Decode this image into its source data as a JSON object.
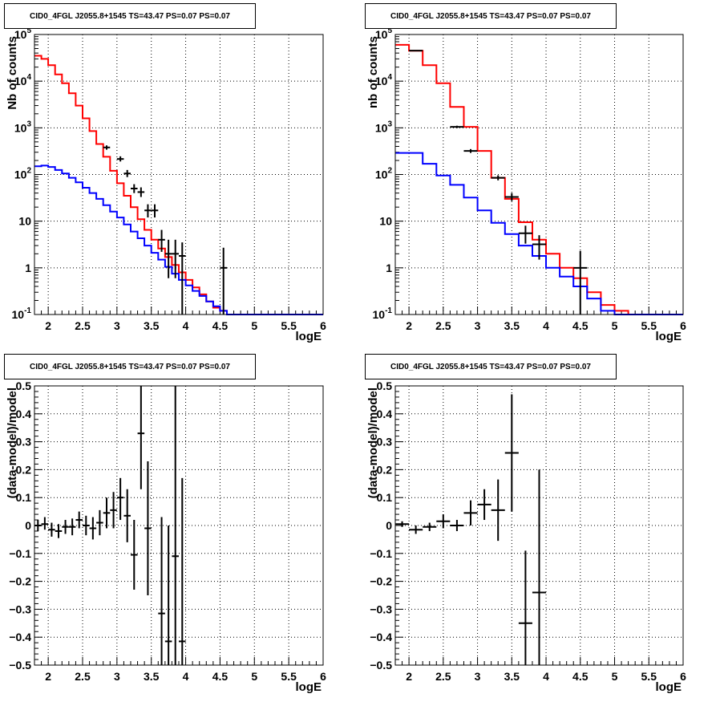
{
  "colors": {
    "frame": "#000000",
    "grid": "#000000",
    "data": "#000000",
    "total_model": "#ff0000",
    "component_model": "#0000ff"
  },
  "chart_data": [
    {
      "type": "line",
      "title": "CID0_4FGL J2055.8+1545 TS=43.47 PS=0.07 PS=0.07",
      "xlabel": "logE",
      "ylabel": "Nb of counts",
      "xlim": [
        1.8,
        6.0
      ],
      "ylim": [
        0.1,
        100000
      ],
      "yscale": "log",
      "grid": true,
      "xticks": [
        2,
        2.5,
        3,
        3.5,
        4,
        4.5,
        5,
        5.5,
        6
      ],
      "xtick_labels": [
        "2",
        "2.5",
        "3",
        "3.5",
        "4",
        "4.5",
        "5",
        "5.5",
        "6"
      ],
      "yticks": [
        0.1,
        1,
        10,
        100,
        1000,
        10000,
        100000
      ],
      "ytick_labels": [
        "10^-1",
        "1",
        "10",
        "10^2",
        "10^3",
        "10^4",
        "10^5"
      ],
      "bin_edges": [
        1.8,
        1.9,
        2.0,
        2.1,
        2.2,
        2.3,
        2.4,
        2.5,
        2.6,
        2.7,
        2.8,
        2.9,
        3.0,
        3.1,
        3.2,
        3.3,
        3.4,
        3.5,
        3.6,
        3.7,
        3.8,
        3.9,
        4.0,
        4.1,
        4.2,
        4.3,
        4.4,
        4.5,
        4.6,
        4.7,
        4.8,
        4.9,
        5.0,
        5.1,
        5.2,
        5.3,
        5.4,
        5.5,
        5.6,
        5.7,
        5.8,
        5.9,
        6.0
      ],
      "series": [
        {
          "role": "total_model",
          "values": [
            35000,
            30000,
            22000,
            14000,
            9000,
            5500,
            3000,
            1600,
            850,
            450,
            240,
            120,
            65,
            35,
            20,
            11,
            6.5,
            4.0,
            2.6,
            1.7,
            1.15,
            0.8,
            0.55,
            0.38,
            0.27,
            0.19,
            0.14,
            0.12,
            0.1,
            0.1,
            0.1,
            0.1,
            0.1,
            0.1,
            0.1,
            0.1,
            0.1,
            0.1,
            0.1,
            0.1,
            0.1,
            0.1
          ]
        },
        {
          "role": "component_model",
          "values": [
            150,
            155,
            145,
            125,
            105,
            85,
            68,
            52,
            40,
            30,
            22,
            16,
            12,
            8.5,
            6.0,
            4.3,
            3.0,
            2.1,
            1.5,
            1.05,
            0.75,
            0.55,
            0.42,
            0.32,
            0.25,
            0.19,
            0.15,
            0.12,
            0.1,
            0.1,
            0.1,
            0.1,
            0.1,
            0.1,
            0.1,
            0.1,
            0.1,
            0.1,
            0.1,
            0.1,
            0.1,
            0.1
          ]
        }
      ],
      "points": [
        {
          "x": 2.85,
          "y": 380,
          "xerr": 0.05,
          "ylo": 340,
          "yhi": 420
        },
        {
          "x": 3.05,
          "y": 215,
          "xerr": 0.05,
          "ylo": 190,
          "yhi": 245
        },
        {
          "x": 3.15,
          "y": 105,
          "xerr": 0.05,
          "ylo": 88,
          "yhi": 125
        },
        {
          "x": 3.25,
          "y": 50,
          "xerr": 0.05,
          "ylo": 40,
          "yhi": 62
        },
        {
          "x": 3.35,
          "y": 42,
          "xerr": 0.05,
          "ylo": 33,
          "yhi": 53
        },
        {
          "x": 3.45,
          "y": 17,
          "xerr": 0.05,
          "ylo": 12,
          "yhi": 23
        },
        {
          "x": 3.55,
          "y": 17,
          "xerr": 0.05,
          "ylo": 12,
          "yhi": 23
        },
        {
          "x": 3.65,
          "y": 4.0,
          "xerr": 0.05,
          "ylo": 2.2,
          "yhi": 6.5
        },
        {
          "x": 3.75,
          "y": 2.0,
          "xerr": 0.05,
          "ylo": 0.6,
          "yhi": 4.0
        },
        {
          "x": 3.85,
          "y": 2.0,
          "xerr": 0.05,
          "ylo": 0.6,
          "yhi": 4.0
        },
        {
          "x": 3.95,
          "y": 1.8,
          "xerr": 0.05,
          "ylo": 0.1,
          "yhi": 3.5
        },
        {
          "x": 4.55,
          "y": 1.0,
          "xerr": 0.05,
          "ylo": 0.1,
          "yhi": 2.7
        }
      ]
    },
    {
      "type": "line",
      "title": "CID0_4FGL J2055.8+1545 TS=43.47 PS=0.07 PS=0.07",
      "xlabel": "logE",
      "ylabel": "nb of counts",
      "xlim": [
        1.8,
        6.0
      ],
      "ylim": [
        0.1,
        100000
      ],
      "yscale": "log",
      "grid": true,
      "xticks": [
        2,
        2.5,
        3,
        3.5,
        4,
        4.5,
        5,
        5.5,
        6
      ],
      "xtick_labels": [
        "2",
        "2.5",
        "3",
        "3.5",
        "4",
        "4.5",
        "5",
        "5.5",
        "6"
      ],
      "yticks": [
        0.1,
        1,
        10,
        100,
        1000,
        10000,
        100000
      ],
      "ytick_labels": [
        "10^-1",
        "1",
        "10",
        "10^2",
        "10^3",
        "10^4",
        "10^5"
      ],
      "bin_edges": [
        1.8,
        2.0,
        2.2,
        2.4,
        2.6,
        2.8,
        3.0,
        3.2,
        3.4,
        3.6,
        3.8,
        4.0,
        4.2,
        4.4,
        4.6,
        4.8,
        5.0,
        5.2,
        5.4,
        5.6,
        5.8,
        6.0
      ],
      "series": [
        {
          "role": "total_model",
          "values": [
            60000,
            45000,
            22000,
            9000,
            2800,
            1050,
            320,
            85,
            30,
            9.5,
            4.0,
            2.0,
            1.0,
            0.6,
            0.3,
            0.16,
            0.12,
            0.1,
            0.1,
            0.1,
            0.1
          ]
        },
        {
          "role": "component_model",
          "values": [
            290,
            290,
            170,
            95,
            60,
            32,
            17,
            9.2,
            5.3,
            3.0,
            1.8,
            1.0,
            0.65,
            0.4,
            0.22,
            0.12,
            0.1,
            0.1,
            0.1,
            0.1,
            0.1
          ]
        }
      ],
      "points": [
        {
          "x": 2.1,
          "y": 45000,
          "xerr": 0.1,
          "ylo": 44000,
          "yhi": 46000
        },
        {
          "x": 2.7,
          "y": 1050,
          "xerr": 0.1,
          "ylo": 990,
          "yhi": 1110
        },
        {
          "x": 2.9,
          "y": 320,
          "xerr": 0.1,
          "ylo": 290,
          "yhi": 350
        },
        {
          "x": 3.3,
          "y": 85,
          "xerr": 0.1,
          "ylo": 75,
          "yhi": 96
        },
        {
          "x": 3.5,
          "y": 33,
          "xerr": 0.1,
          "ylo": 27,
          "yhi": 40
        },
        {
          "x": 3.7,
          "y": 5.5,
          "xerr": 0.1,
          "ylo": 3.3,
          "yhi": 8.0
        },
        {
          "x": 3.9,
          "y": 3.2,
          "xerr": 0.1,
          "ylo": 1.5,
          "yhi": 5.0
        },
        {
          "x": 4.5,
          "y": 1.0,
          "xerr": 0.1,
          "ylo": 0.1,
          "yhi": 2.3
        }
      ]
    },
    {
      "type": "scatter",
      "title": "CID0_4FGL J2055.8+1545 TS=43.47 PS=0.07 PS=0.07",
      "xlabel": "logE",
      "ylabel": "(data-model)/model",
      "xlim": [
        1.8,
        6.0
      ],
      "ylim": [
        -0.5,
        0.5
      ],
      "grid": true,
      "xticks": [
        2,
        2.5,
        3,
        3.5,
        4,
        4.5,
        5,
        5.5,
        6
      ],
      "xtick_labels": [
        "2",
        "2.5",
        "3",
        "3.5",
        "4",
        "4.5",
        "5",
        "5.5",
        "6"
      ],
      "yticks": [
        -0.5,
        -0.4,
        -0.3,
        -0.2,
        -0.1,
        0,
        0.1,
        0.2,
        0.3,
        0.4,
        0.5
      ],
      "ytick_labels": [
        "−0.5",
        "−0.4",
        "−0.3",
        "−0.2",
        "−0.1",
        "0",
        "0.1",
        "0.2",
        "0.3",
        "0.4",
        "0.5"
      ],
      "points": [
        {
          "x": 1.85,
          "y": 0.0,
          "xerr": 0.05,
          "ylo": -0.02,
          "yhi": 0.02
        },
        {
          "x": 1.95,
          "y": 0.005,
          "xerr": 0.05,
          "ylo": -0.015,
          "yhi": 0.03
        },
        {
          "x": 2.05,
          "y": -0.015,
          "xerr": 0.05,
          "ylo": -0.04,
          "yhi": 0.01
        },
        {
          "x": 2.15,
          "y": -0.02,
          "xerr": 0.05,
          "ylo": -0.045,
          "yhi": 0.005
        },
        {
          "x": 2.25,
          "y": -0.005,
          "xerr": 0.05,
          "ylo": -0.03,
          "yhi": 0.02
        },
        {
          "x": 2.35,
          "y": -0.005,
          "xerr": 0.05,
          "ylo": -0.035,
          "yhi": 0.025
        },
        {
          "x": 2.45,
          "y": 0.02,
          "xerr": 0.05,
          "ylo": -0.01,
          "yhi": 0.05
        },
        {
          "x": 2.55,
          "y": 0.0,
          "xerr": 0.05,
          "ylo": -0.035,
          "yhi": 0.035
        },
        {
          "x": 2.65,
          "y": -0.01,
          "xerr": 0.05,
          "ylo": -0.05,
          "yhi": 0.03
        },
        {
          "x": 2.75,
          "y": 0.01,
          "xerr": 0.05,
          "ylo": -0.035,
          "yhi": 0.055
        },
        {
          "x": 2.85,
          "y": 0.045,
          "xerr": 0.05,
          "ylo": -0.01,
          "yhi": 0.1
        },
        {
          "x": 2.95,
          "y": 0.055,
          "xerr": 0.05,
          "ylo": -0.01,
          "yhi": 0.12
        },
        {
          "x": 3.05,
          "y": 0.1,
          "xerr": 0.05,
          "ylo": 0.02,
          "yhi": 0.17
        },
        {
          "x": 3.15,
          "y": 0.035,
          "xerr": 0.05,
          "ylo": -0.06,
          "yhi": 0.13
        },
        {
          "x": 3.25,
          "y": -0.105,
          "xerr": 0.05,
          "ylo": -0.23,
          "yhi": 0.02
        },
        {
          "x": 3.35,
          "y": 0.33,
          "xerr": 0.05,
          "ylo": 0.13,
          "yhi": 0.5
        },
        {
          "x": 3.45,
          "y": -0.01,
          "xerr": 0.05,
          "ylo": -0.25,
          "yhi": 0.23
        },
        {
          "x": 3.65,
          "y": -0.315,
          "xerr": 0.05,
          "ylo": -0.5,
          "yhi": 0.03
        },
        {
          "x": 3.75,
          "y": -0.415,
          "xerr": 0.05,
          "ylo": -0.5,
          "yhi": 0.0
        },
        {
          "x": 3.85,
          "y": -0.11,
          "xerr": 0.05,
          "ylo": -0.5,
          "yhi": 0.5
        },
        {
          "x": 3.95,
          "y": -0.415,
          "xerr": 0.05,
          "ylo": -0.5,
          "yhi": 0.17
        }
      ]
    },
    {
      "type": "scatter",
      "title": "CID0_4FGL J2055.8+1545 TS=43.47 PS=0.07 PS=0.07",
      "xlabel": "logE",
      "ylabel": "(data-model)/model",
      "xlim": [
        1.8,
        6.0
      ],
      "ylim": [
        -0.5,
        0.5
      ],
      "grid": true,
      "xticks": [
        2,
        2.5,
        3,
        3.5,
        4,
        4.5,
        5,
        5.5,
        6
      ],
      "xtick_labels": [
        "2",
        "2.5",
        "3",
        "3.5",
        "4",
        "4.5",
        "5",
        "5.5",
        "6"
      ],
      "yticks": [
        -0.5,
        -0.4,
        -0.3,
        -0.2,
        -0.1,
        0,
        0.1,
        0.2,
        0.3,
        0.4,
        0.5
      ],
      "ytick_labels": [
        "−0.5",
        "−0.4",
        "−0.3",
        "−0.2",
        "−0.1",
        "0",
        "0.1",
        "0.2",
        "0.3",
        "0.4",
        "0.5"
      ],
      "points": [
        {
          "x": 1.9,
          "y": 0.005,
          "xerr": 0.1,
          "ylo": -0.005,
          "yhi": 0.015
        },
        {
          "x": 2.1,
          "y": -0.015,
          "xerr": 0.1,
          "ylo": -0.03,
          "yhi": 0.0
        },
        {
          "x": 2.3,
          "y": -0.005,
          "xerr": 0.1,
          "ylo": -0.02,
          "yhi": 0.01
        },
        {
          "x": 2.5,
          "y": 0.015,
          "xerr": 0.1,
          "ylo": -0.01,
          "yhi": 0.04
        },
        {
          "x": 2.7,
          "y": 0.0,
          "xerr": 0.1,
          "ylo": -0.02,
          "yhi": 0.02
        },
        {
          "x": 2.9,
          "y": 0.045,
          "xerr": 0.1,
          "ylo": 0.0,
          "yhi": 0.09
        },
        {
          "x": 3.1,
          "y": 0.075,
          "xerr": 0.1,
          "ylo": 0.02,
          "yhi": 0.13
        },
        {
          "x": 3.3,
          "y": 0.055,
          "xerr": 0.1,
          "ylo": -0.055,
          "yhi": 0.165
        },
        {
          "x": 3.5,
          "y": 0.26,
          "xerr": 0.1,
          "ylo": 0.05,
          "yhi": 0.47
        },
        {
          "x": 3.7,
          "y": -0.35,
          "xerr": 0.1,
          "ylo": -0.5,
          "yhi": -0.09
        },
        {
          "x": 3.9,
          "y": -0.24,
          "xerr": 0.1,
          "ylo": -0.5,
          "yhi": 0.2
        }
      ]
    }
  ]
}
